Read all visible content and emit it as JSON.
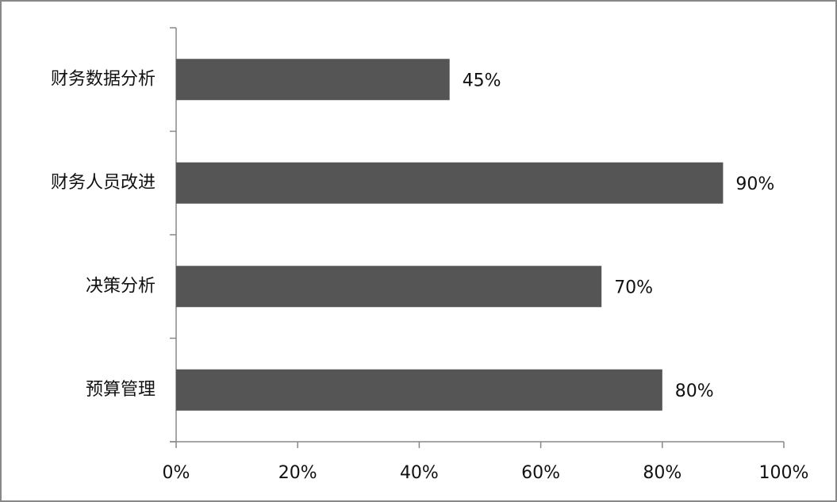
{
  "chart_data": {
    "type": "bar",
    "orientation": "horizontal",
    "categories": [
      "财务数据分析",
      "财务人员改进",
      "决策分析",
      "预算管理"
    ],
    "values": [
      45,
      90,
      70,
      80
    ],
    "value_labels": [
      "45%",
      "90%",
      "70%",
      "80%"
    ],
    "color": "#555555",
    "xlim": [
      0,
      100
    ],
    "xticks": [
      {
        "value": 0,
        "label": "0%"
      },
      {
        "value": 20,
        "label": "20%"
      },
      {
        "value": 40,
        "label": "40%"
      },
      {
        "value": 60,
        "label": "60%"
      },
      {
        "value": 80,
        "label": "80%"
      },
      {
        "value": 100,
        "label": "100%"
      }
    ],
    "grid": false
  }
}
